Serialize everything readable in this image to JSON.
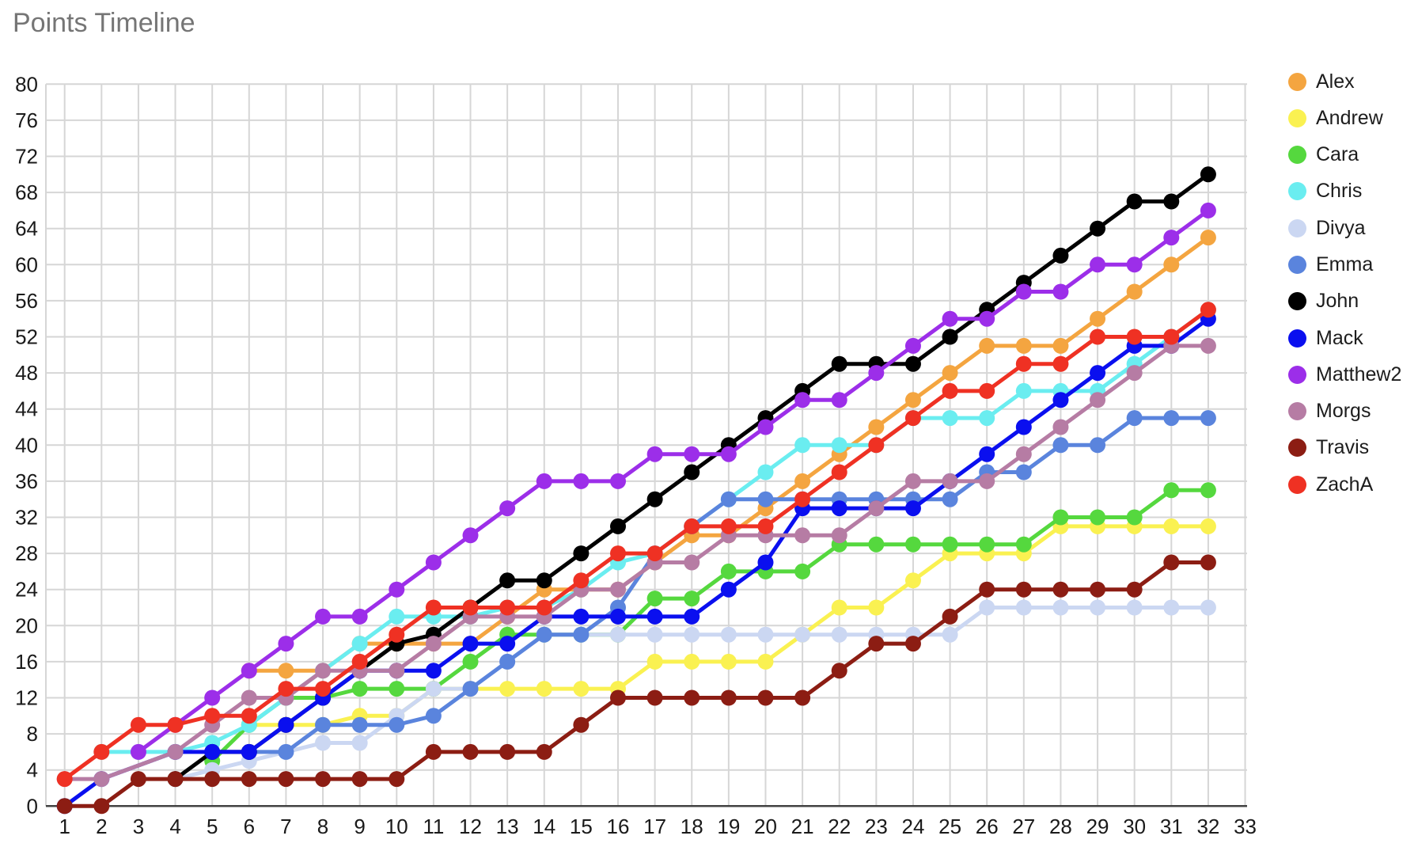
{
  "title": "Points Timeline",
  "chart_data": {
    "type": "line",
    "x_ticks": [
      1,
      2,
      3,
      4,
      5,
      6,
      7,
      8,
      9,
      10,
      11,
      12,
      13,
      14,
      15,
      16,
      17,
      18,
      19,
      20,
      21,
      22,
      23,
      24,
      25,
      26,
      27,
      28,
      29,
      30,
      31,
      32,
      33
    ],
    "weeks": [
      1,
      2,
      3,
      4,
      5,
      6,
      7,
      8,
      9,
      10,
      11,
      12,
      13,
      14,
      15,
      16,
      17,
      18,
      19,
      20,
      21,
      22,
      23,
      24,
      25,
      26,
      27,
      28,
      29,
      30,
      31,
      32
    ],
    "xlabel": "",
    "ylabel": "",
    "xlim": [
      1,
      33
    ],
    "ylim": [
      0,
      80
    ],
    "ytick_step": 4,
    "grid": true,
    "legend_position": "right",
    "axis_color": "#424242",
    "grid_color": "#d6d6d6",
    "tick_label_color": "#1a1a1a",
    "title_color": "#757575",
    "series": [
      {
        "name": "Alex",
        "color": "#F4A540",
        "values": [
          null,
          null,
          null,
          null,
          null,
          15,
          15,
          15,
          18,
          18,
          18,
          18,
          21,
          24,
          24,
          24,
          27,
          30,
          30,
          33,
          36,
          39,
          42,
          45,
          48,
          51,
          51,
          51,
          54,
          57,
          60,
          63
        ]
      },
      {
        "name": "Andrew",
        "color": "#FAF151",
        "values": [
          null,
          null,
          null,
          null,
          null,
          9,
          9,
          9,
          10,
          10,
          13,
          13,
          13,
          13,
          13,
          13,
          16,
          16,
          16,
          16,
          19,
          22,
          22,
          25,
          28,
          28,
          28,
          31,
          31,
          31,
          31,
          31
        ]
      },
      {
        "name": "Cara",
        "color": "#55D83E",
        "values": [
          null,
          null,
          null,
          null,
          5,
          9,
          12,
          12,
          13,
          13,
          13,
          16,
          19,
          19,
          19,
          19,
          23,
          23,
          26,
          26,
          26,
          29,
          29,
          29,
          29,
          29,
          29,
          32,
          32,
          32,
          35,
          35
        ]
      },
      {
        "name": "Chris",
        "color": "#6AEDF0",
        "values": [
          null,
          6,
          6,
          6,
          7,
          9,
          12,
          15,
          18,
          21,
          21,
          21,
          22,
          22,
          24,
          27,
          28,
          31,
          34,
          37,
          40,
          40,
          40,
          43,
          43,
          43,
          46,
          46,
          46,
          49,
          52,
          55
        ]
      },
      {
        "name": "Divya",
        "color": "#CBD7F2",
        "values": [
          null,
          null,
          null,
          3,
          4,
          5,
          6,
          7,
          7,
          10,
          13,
          13,
          16,
          19,
          19,
          19,
          19,
          19,
          19,
          19,
          19,
          19,
          19,
          19,
          19,
          22,
          22,
          22,
          22,
          22,
          22,
          22
        ]
      },
      {
        "name": "Emma",
        "color": "#5A84DD",
        "values": [
          null,
          null,
          null,
          null,
          6,
          6,
          6,
          9,
          9,
          9,
          10,
          13,
          16,
          19,
          19,
          22,
          28,
          31,
          34,
          34,
          34,
          34,
          34,
          34,
          34,
          37,
          37,
          40,
          40,
          43,
          43,
          43
        ]
      },
      {
        "name": "John",
        "color": "#000000",
        "values": [
          null,
          null,
          null,
          3,
          6,
          6,
          9,
          12,
          15,
          18,
          19,
          22,
          25,
          25,
          28,
          31,
          34,
          37,
          40,
          43,
          46,
          49,
          49,
          49,
          52,
          55,
          58,
          61,
          64,
          67,
          67,
          70
        ]
      },
      {
        "name": "Mack",
        "color": "#0A0FEF",
        "values": [
          0,
          3,
          null,
          6,
          6,
          6,
          9,
          12,
          15,
          15,
          15,
          18,
          18,
          21,
          21,
          21,
          21,
          21,
          24,
          27,
          33,
          33,
          33,
          33,
          36,
          39,
          42,
          45,
          48,
          51,
          51,
          54
        ]
      },
      {
        "name": "Matthew2",
        "color": "#9C2EE9",
        "values": [
          null,
          null,
          6,
          9,
          12,
          15,
          18,
          21,
          21,
          24,
          27,
          30,
          33,
          36,
          36,
          36,
          39,
          39,
          39,
          42,
          45,
          45,
          48,
          51,
          54,
          54,
          57,
          57,
          60,
          60,
          63,
          66
        ]
      },
      {
        "name": "Morgs",
        "color": "#B67CA4",
        "values": [
          3,
          3,
          null,
          6,
          9,
          12,
          12,
          15,
          15,
          15,
          18,
          21,
          21,
          21,
          24,
          24,
          27,
          27,
          30,
          30,
          30,
          30,
          33,
          36,
          36,
          36,
          39,
          42,
          45,
          48,
          51,
          51
        ]
      },
      {
        "name": "Travis",
        "color": "#8C1D13",
        "values": [
          0,
          0,
          3,
          3,
          3,
          3,
          3,
          3,
          3,
          3,
          6,
          6,
          6,
          6,
          9,
          12,
          12,
          12,
          12,
          12,
          12,
          15,
          18,
          18,
          21,
          24,
          24,
          24,
          24,
          24,
          27,
          27
        ]
      },
      {
        "name": "ZachA",
        "color": "#EF3123",
        "values": [
          3,
          6,
          9,
          9,
          10,
          10,
          13,
          13,
          16,
          19,
          22,
          22,
          22,
          22,
          25,
          28,
          28,
          31,
          31,
          31,
          34,
          37,
          40,
          43,
          46,
          46,
          49,
          49,
          52,
          52,
          52,
          55
        ]
      }
    ]
  }
}
